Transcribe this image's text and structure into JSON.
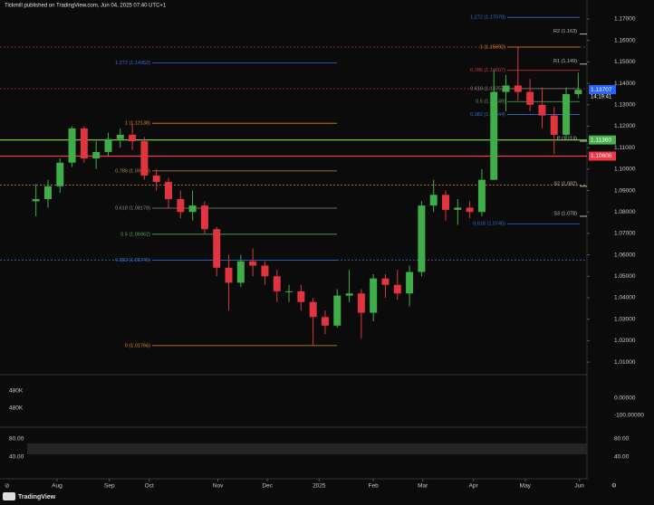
{
  "header": "Tickmill published on TradingView.com, Jun 04, 2025 07:40 UTC+1",
  "footer": "TradingView",
  "chart_data": {
    "type": "candlestick",
    "bull_color": "#3fae49",
    "bear_color": "#e0343f",
    "xlim": [
      0,
      46
    ],
    "ylim": [
      1.0058,
      1.1755
    ],
    "xticks": [
      {
        "value": 2.25,
        "label": "Aug"
      },
      {
        "value": 6.6,
        "label": "Sep"
      },
      {
        "value": 9.9,
        "label": "Oct"
      },
      {
        "value": 15.6,
        "label": "Nov"
      },
      {
        "value": 19.7,
        "label": "Dec"
      },
      {
        "value": 24,
        "label": "2025"
      },
      {
        "value": 28.5,
        "label": "Feb"
      },
      {
        "value": 32.6,
        "label": "Mar"
      },
      {
        "value": 36.8,
        "label": "Apr"
      },
      {
        "value": 41.1,
        "label": "May"
      },
      {
        "value": 45.6,
        "label": "Jun"
      }
    ],
    "yticks": [
      {
        "value": 1.17,
        "label": "1.17000"
      },
      {
        "value": 1.16,
        "label": "1.16000"
      },
      {
        "value": 1.15,
        "label": "1.15000"
      },
      {
        "value": 1.14,
        "label": "1.14000"
      },
      {
        "value": 1.13,
        "label": "1.13000"
      },
      {
        "value": 1.12,
        "label": "1.12000"
      },
      {
        "value": 1.11,
        "label": "1.11000"
      },
      {
        "value": 1.1,
        "label": "1.10000"
      },
      {
        "value": 1.09,
        "label": "1.09000"
      },
      {
        "value": 1.08,
        "label": "1.08000"
      },
      {
        "value": 1.07,
        "label": "1.07000"
      },
      {
        "value": 1.06,
        "label": "1.06000"
      },
      {
        "value": 1.05,
        "label": "1.05000"
      },
      {
        "value": 1.04,
        "label": "1.04000"
      },
      {
        "value": 1.03,
        "label": "1.03000"
      },
      {
        "value": 1.02,
        "label": "1.02000"
      },
      {
        "value": 1.01,
        "label": "1.01000"
      }
    ],
    "open": [
      1.085,
      1.086,
      1.092,
      1.103,
      1.119,
      1.105,
      1.108,
      1.114,
      1.116,
      1.113,
      1.097,
      1.094,
      1.086,
      1.08,
      1.083,
      1.072,
      1.054,
      1.047,
      1.057,
      1.055,
      1.05,
      1.043,
      1.043,
      1.038,
      1.031,
      1.027,
      1.041,
      1.042,
      1.033,
      1.049,
      1.046,
      1.042,
      1.052,
      1.083,
      1.088,
      1.081,
      1.082,
      1.08,
      1.095,
      1.136,
      1.139,
      1.136,
      1.13,
      1.125,
      1.116,
      1.135
    ],
    "high": [
      1.093,
      1.095,
      1.105,
      1.12,
      1.12,
      1.113,
      1.117,
      1.119,
      1.1214,
      1.115,
      1.1,
      1.096,
      1.09,
      1.09,
      1.085,
      1.073,
      1.06,
      1.06,
      1.063,
      1.057,
      1.053,
      1.046,
      1.046,
      1.04,
      1.034,
      1.044,
      1.053,
      1.044,
      1.051,
      1.051,
      1.053,
      1.055,
      1.085,
      1.095,
      1.09,
      1.086,
      1.085,
      1.1,
      1.146,
      1.144,
      1.1573,
      1.142,
      1.138,
      1.129,
      1.138,
      1.145
    ],
    "low": [
      1.078,
      1.082,
      1.089,
      1.101,
      1.103,
      1.1,
      1.106,
      1.11,
      1.109,
      1.095,
      1.09,
      1.082,
      1.077,
      1.076,
      1.07,
      1.05,
      1.034,
      1.045,
      1.05,
      1.046,
      1.038,
      1.038,
      1.034,
      1.0177,
      1.023,
      1.026,
      1.038,
      1.021,
      1.029,
      1.04,
      1.039,
      1.036,
      1.05,
      1.08,
      1.076,
      1.074,
      1.077,
      1.078,
      1.095,
      1.127,
      1.132,
      1.127,
      1.119,
      1.107,
      1.114,
      1.133
    ],
    "close": [
      1.086,
      1.092,
      1.103,
      1.119,
      1.105,
      1.108,
      1.114,
      1.116,
      1.113,
      1.097,
      1.094,
      1.086,
      1.08,
      1.083,
      1.072,
      1.054,
      1.047,
      1.057,
      1.055,
      1.05,
      1.043,
      1.043,
      1.038,
      1.031,
      1.027,
      1.041,
      1.042,
      1.033,
      1.049,
      1.046,
      1.042,
      1.052,
      1.083,
      1.088,
      1.081,
      1.082,
      1.08,
      1.095,
      1.136,
      1.139,
      1.136,
      1.13,
      1.125,
      1.116,
      1.135,
      1.137
    ],
    "left_fib": [
      {
        "value": 1.14953,
        "label": "1.272 (1.14953)",
        "color": "#2f6fd6"
      },
      {
        "value": 1.12138,
        "label": "1 (1.12138)",
        "color": "#e08a1e"
      },
      {
        "value": 1.09913,
        "label": "0.786 (1.09913)",
        "color": "#c98a3a"
      },
      {
        "value": 1.08178,
        "label": "0.618 (1.08178)",
        "color": "#8a8a8a"
      },
      {
        "value": 1.06962,
        "label": "0.5 (1.06962)",
        "color": "#4caf50"
      },
      {
        "value": 1.05745,
        "label": "0.382 (1.05745)",
        "color": "#2f6fd6"
      },
      {
        "value": 1.01766,
        "label": "0 (1.01766)",
        "color": "#e08a1e"
      }
    ],
    "right_fib": [
      {
        "value": 1.17078,
        "label": "1.272 (1.17078)",
        "color": "#2f6fd6"
      },
      {
        "value": 1.15692,
        "label": "1 (1.15692)",
        "color": "#e08a1e"
      },
      {
        "value": 1.14607,
        "label": "0.786 (1.14607)",
        "color": "#e0343f"
      },
      {
        "value": 1.13757,
        "label": "0.618 (1.13757)",
        "color": "#8a8a8a"
      },
      {
        "value": 1.13149,
        "label": "0.5 (1.13149)",
        "color": "#4caf50"
      },
      {
        "value": 1.12544,
        "label": "0.382 (1.12544)",
        "color": "#2f6fd6"
      },
      {
        "value": 1.0745,
        "label": "0.618 (1.0745)",
        "color": "#2f6fd6"
      }
    ],
    "pivots": [
      {
        "value": 1.163,
        "label": "R2 (1.163)",
        "color": "#bbbbbb"
      },
      {
        "value": 1.149,
        "label": "R1 (1.149)",
        "color": "#bbbbbb"
      },
      {
        "value": 1.113,
        "label": "P (1.113)",
        "color": "#bbbbbb"
      },
      {
        "value": 1.092,
        "label": "S2 (1.092)",
        "color": "#bbbbbb"
      },
      {
        "value": 1.078,
        "label": "S3 (1.078)",
        "color": "#bbbbbb"
      }
    ],
    "lines": [
      {
        "value": 1.15692,
        "color": "#c0303a",
        "dash": true
      },
      {
        "value": 1.1375,
        "color": "#c0303a",
        "dash": true
      },
      {
        "value": 1.1136,
        "color": "#7cc242",
        "dash": false
      },
      {
        "value": 1.10606,
        "color": "#f03a4a",
        "dash": false
      },
      {
        "value": 1.0925,
        "color": "#e08a1e",
        "dash": true
      },
      {
        "value": 1.05745,
        "color": "#2f6fd6",
        "dash": true
      }
    ],
    "price_tags": [
      {
        "value": 1.13707,
        "label": "1.13707",
        "color": "#2962ff"
      },
      {
        "value": 1.1136,
        "label": "1.11360",
        "color": "#4caf50"
      },
      {
        "value": 1.10606,
        "label": "1.10606",
        "color": "#f23645"
      }
    ],
    "countdown": "14:19:41",
    "volume_panel": {
      "left_labels": [
        "480K",
        "480K"
      ],
      "right_labels": [
        "0.00000",
        "-100.00000"
      ]
    },
    "stoch_panel": {
      "left_labels": [
        "80.00",
        "40.00"
      ],
      "right_labels": [
        "80.00",
        "40.00"
      ]
    }
  }
}
